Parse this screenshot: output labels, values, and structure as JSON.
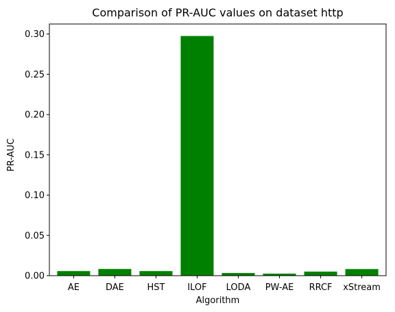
{
  "chart_data": {
    "type": "bar",
    "title": "Comparison of PR-AUC values on dataset http",
    "xlabel": "Algorithm",
    "ylabel": "PR-AUC",
    "categories": [
      "AE",
      "DAE",
      "HST",
      "ILOF",
      "LODA",
      "PW-AE",
      "RRCF",
      "xStream"
    ],
    "values": [
      0.0057,
      0.0083,
      0.0057,
      0.2975,
      0.0033,
      0.0025,
      0.005,
      0.0082
    ],
    "ylim": [
      0,
      0.3124
    ],
    "yticks": [
      0.0,
      0.05,
      0.1,
      0.15,
      0.2,
      0.25,
      0.3
    ],
    "ytick_labels": [
      "0.00",
      "0.05",
      "0.10",
      "0.15",
      "0.20",
      "0.25",
      "0.30"
    ],
    "grid": false,
    "legend": "none",
    "bar_color": "#008000"
  }
}
